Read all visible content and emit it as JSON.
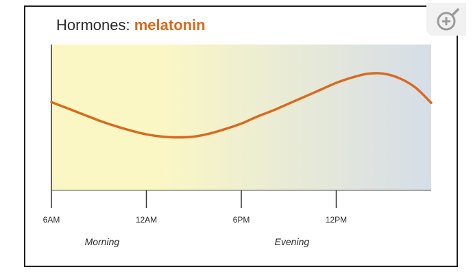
{
  "title": {
    "prefix": "Hormones: ",
    "highlight": "melatonin"
  },
  "colors": {
    "curve": "#d96a1e",
    "bg_left": "#fbf7c4",
    "bg_right": "#d5dde8"
  },
  "zoom_icon": "zoom-in-magnifier-icon",
  "chart_data": {
    "type": "line",
    "title": "Hormones: melatonin",
    "x_ticks": [
      "6AM",
      "12AM",
      "6PM",
      "12PM"
    ],
    "x_tick_hours": [
      0,
      6,
      12,
      18
    ],
    "xlim": [
      0,
      24
    ],
    "y_ticks_shown": false,
    "period_labels": [
      {
        "text": "Morning",
        "hour": 3.2
      },
      {
        "text": "Evening",
        "hour": 15.2
      }
    ],
    "series": [
      {
        "x": [
          0,
          1,
          2,
          3,
          4,
          5,
          6,
          7,
          8,
          9,
          10,
          11,
          12,
          13,
          14,
          15,
          16,
          17,
          18,
          19,
          20,
          21,
          22,
          23,
          24
        ],
        "values": [
          0.55,
          0.47,
          0.39,
          0.31,
          0.24,
          0.18,
          0.13,
          0.1,
          0.09,
          0.1,
          0.14,
          0.2,
          0.27,
          0.36,
          0.44,
          0.53,
          0.62,
          0.71,
          0.8,
          0.87,
          0.92,
          0.92,
          0.86,
          0.74,
          0.54
        ]
      }
    ],
    "ylim": [
      -0.6,
      1.3
    ]
  }
}
